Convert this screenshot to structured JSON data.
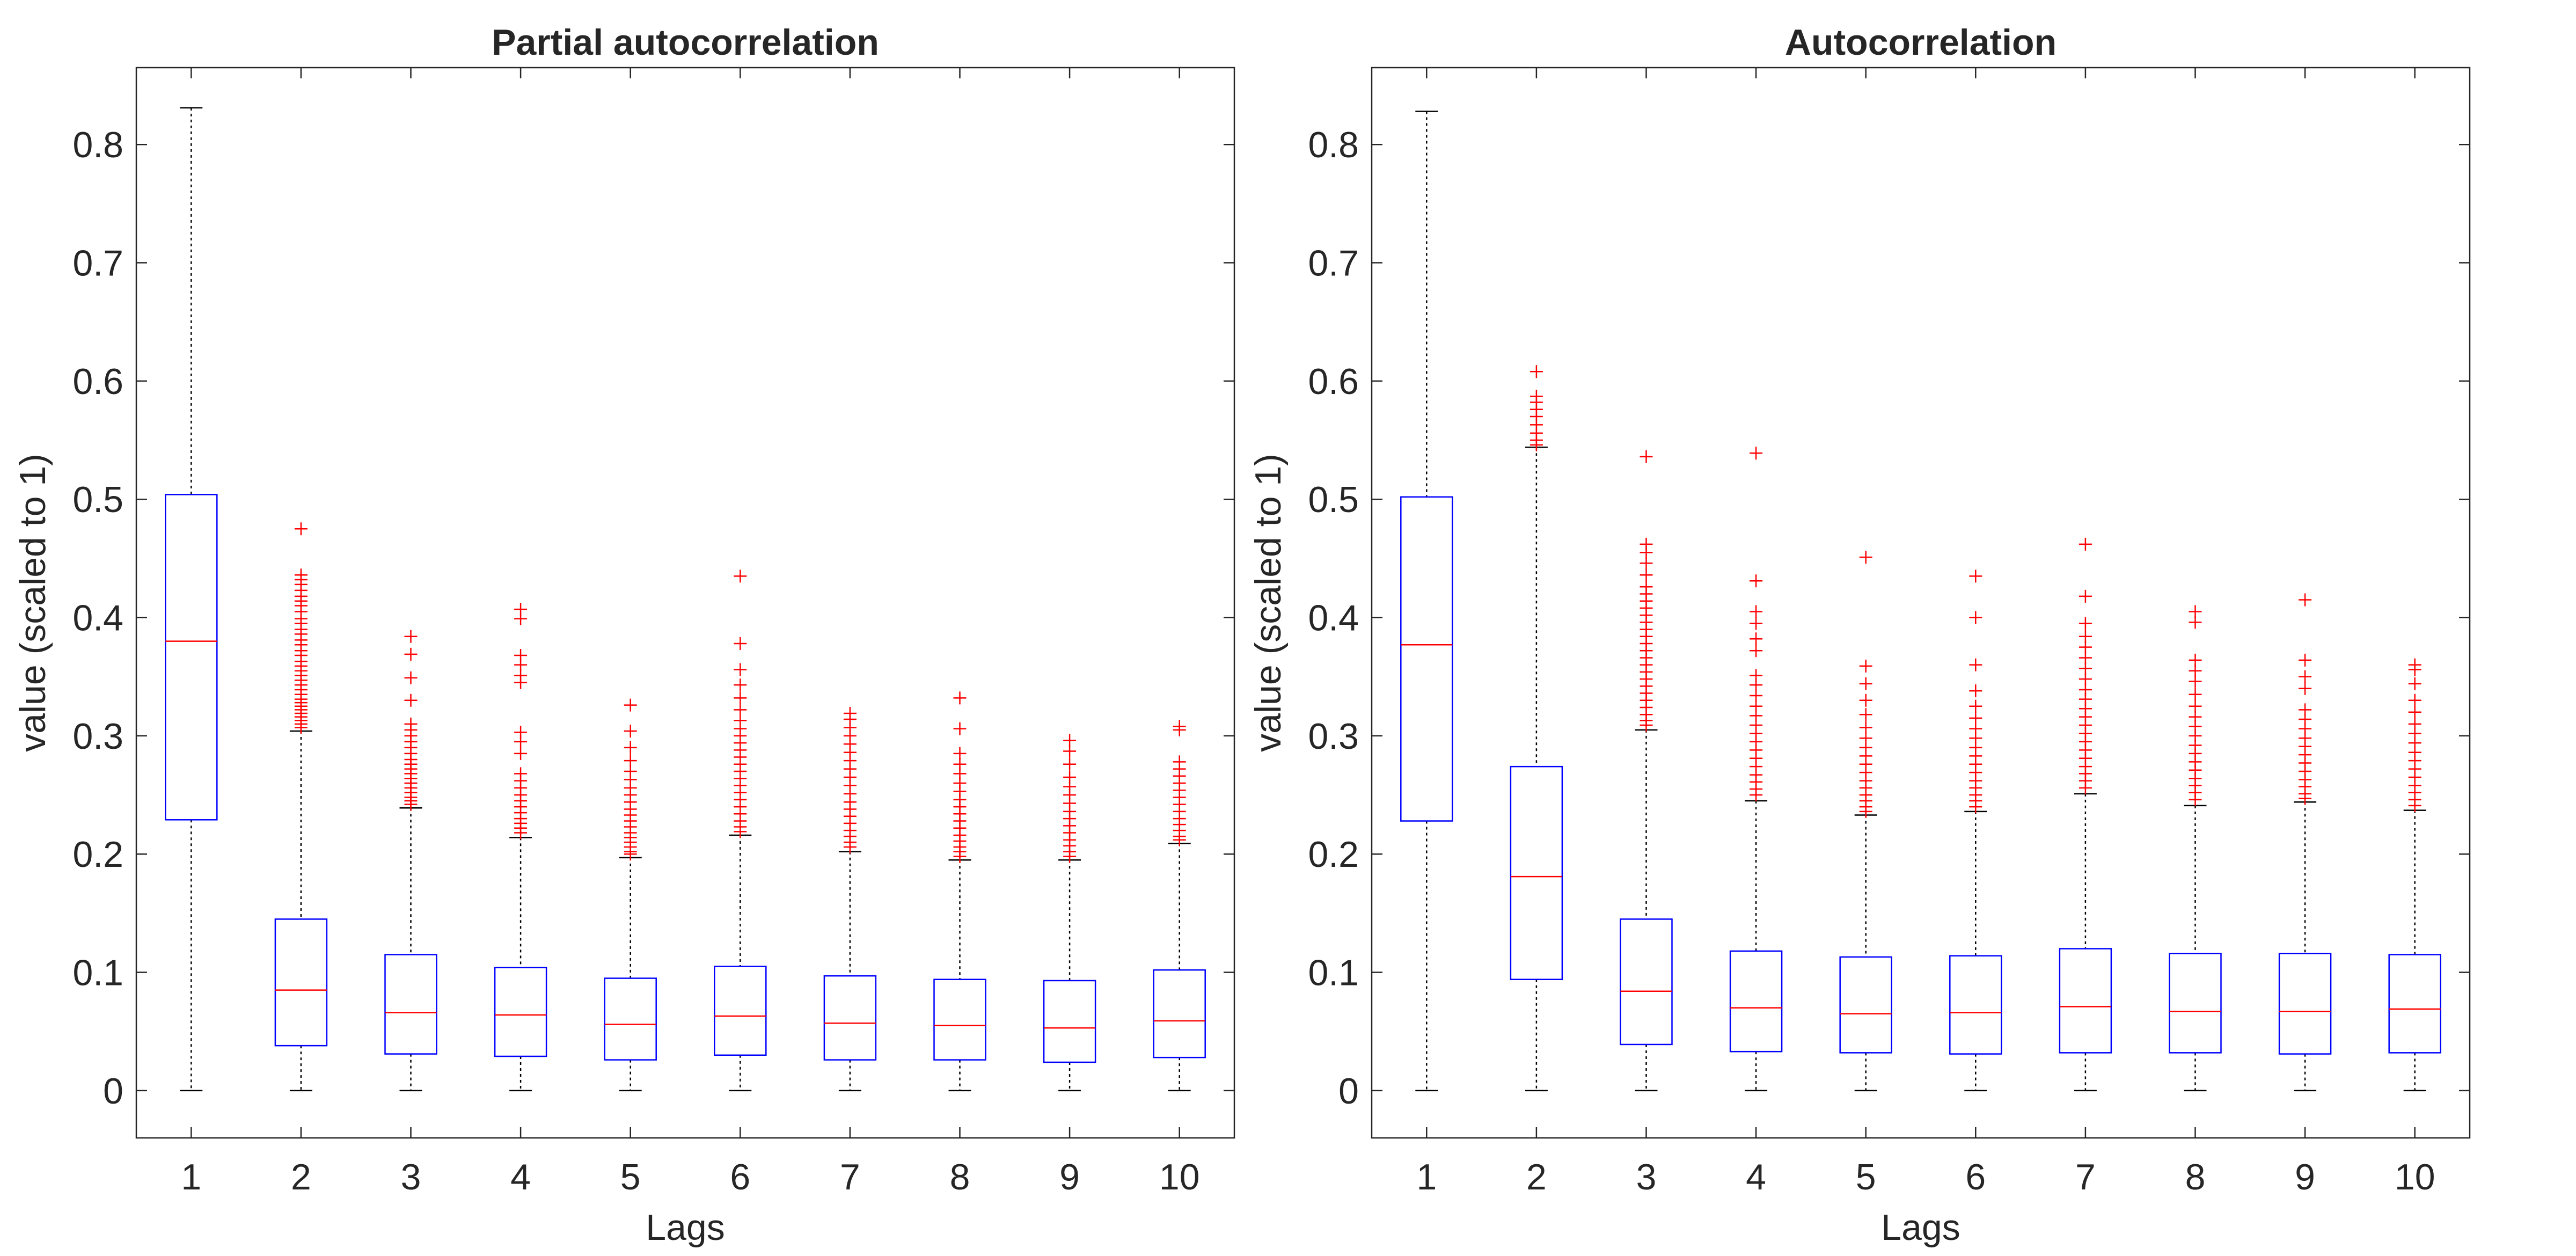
{
  "colors": {
    "box": "#0000ff",
    "median": "#ff0000",
    "outlier": "#ff0000",
    "whisker": "#000000",
    "axis": "#262626",
    "background": "#ffffff"
  },
  "chart_data": [
    {
      "type": "box",
      "title": "Partial autocorrelation",
      "xlabel": "Lags",
      "ylabel": "value (scaled to 1)",
      "ylim": [
        -0.04,
        0.865
      ],
      "yticks": [
        0,
        0.1,
        0.2,
        0.3,
        0.4,
        0.5,
        0.6,
        0.7,
        0.8
      ],
      "ytick_labels": [
        "0",
        "0.1",
        "0.2",
        "0.3",
        "0.4",
        "0.5",
        "0.6",
        "0.7",
        "0.8"
      ],
      "categories": [
        "1",
        "2",
        "3",
        "4",
        "5",
        "6",
        "7",
        "8",
        "9",
        "10"
      ],
      "grid": false,
      "boxes": [
        {
          "lag": "1",
          "whisker_low": 0,
          "q1": 0.229,
          "median": 0.38,
          "q3": 0.504,
          "whisker_high": 0.831,
          "outliers": []
        },
        {
          "lag": "2",
          "whisker_low": 0,
          "q1": 0.038,
          "median": 0.085,
          "q3": 0.145,
          "whisker_high": 0.304,
          "outliers": [
            0.475,
            0.436,
            0.432,
            0.428,
            0.423,
            0.418,
            0.414,
            0.41,
            0.405,
            0.399,
            0.395,
            0.39,
            0.386,
            0.381,
            0.377,
            0.372,
            0.368,
            0.363,
            0.359,
            0.355,
            0.351,
            0.347,
            0.343,
            0.339,
            0.335,
            0.331,
            0.328,
            0.325,
            0.322,
            0.319,
            0.316,
            0.313,
            0.31,
            0.307
          ]
        },
        {
          "lag": "3",
          "whisker_low": 0,
          "q1": 0.031,
          "median": 0.066,
          "q3": 0.115,
          "whisker_high": 0.239,
          "outliers": [
            0.384,
            0.369,
            0.349,
            0.33,
            0.31,
            0.305,
            0.3,
            0.295,
            0.29,
            0.285,
            0.28,
            0.276,
            0.272,
            0.268,
            0.264,
            0.26,
            0.256,
            0.252,
            0.248,
            0.245,
            0.242
          ]
        },
        {
          "lag": "4",
          "whisker_low": 0,
          "q1": 0.029,
          "median": 0.064,
          "q3": 0.104,
          "whisker_high": 0.214,
          "outliers": [
            0.407,
            0.399,
            0.368,
            0.36,
            0.351,
            0.345,
            0.303,
            0.295,
            0.285,
            0.268,
            0.262,
            0.256,
            0.25,
            0.245,
            0.24,
            0.235,
            0.23,
            0.226,
            0.222,
            0.218
          ]
        },
        {
          "lag": "5",
          "whisker_low": 0,
          "q1": 0.026,
          "median": 0.056,
          "q3": 0.095,
          "whisker_high": 0.197,
          "outliers": [
            0.326,
            0.304,
            0.29,
            0.279,
            0.27,
            0.263,
            0.256,
            0.25,
            0.244,
            0.238,
            0.233,
            0.228,
            0.223,
            0.218,
            0.214,
            0.21,
            0.206,
            0.202,
            0.2
          ]
        },
        {
          "lag": "6",
          "whisker_low": 0,
          "q1": 0.03,
          "median": 0.063,
          "q3": 0.105,
          "whisker_high": 0.216,
          "outliers": [
            0.435,
            0.378,
            0.356,
            0.343,
            0.332,
            0.322,
            0.313,
            0.306,
            0.3,
            0.294,
            0.288,
            0.282,
            0.276,
            0.27,
            0.264,
            0.258,
            0.252,
            0.246,
            0.24,
            0.234,
            0.228,
            0.223,
            0.219
          ]
        },
        {
          "lag": "7",
          "whisker_low": 0,
          "q1": 0.026,
          "median": 0.057,
          "q3": 0.097,
          "whisker_high": 0.202,
          "outliers": [
            0.319,
            0.314,
            0.307,
            0.3,
            0.293,
            0.286,
            0.279,
            0.272,
            0.265,
            0.258,
            0.251,
            0.244,
            0.238,
            0.232,
            0.226,
            0.22,
            0.215,
            0.21,
            0.206
          ]
        },
        {
          "lag": "8",
          "whisker_low": 0,
          "q1": 0.026,
          "median": 0.055,
          "q3": 0.094,
          "whisker_high": 0.195,
          "outliers": [
            0.332,
            0.306,
            0.285,
            0.276,
            0.268,
            0.26,
            0.253,
            0.246,
            0.24,
            0.234,
            0.228,
            0.222,
            0.216,
            0.211,
            0.206,
            0.202,
            0.198
          ]
        },
        {
          "lag": "9",
          "whisker_low": 0,
          "q1": 0.024,
          "median": 0.053,
          "q3": 0.093,
          "whisker_high": 0.195,
          "outliers": [
            0.296,
            0.287,
            0.276,
            0.265,
            0.257,
            0.25,
            0.243,
            0.236,
            0.23,
            0.224,
            0.218,
            0.212,
            0.207,
            0.202,
            0.198
          ]
        },
        {
          "lag": "10",
          "whisker_low": 0,
          "q1": 0.028,
          "median": 0.059,
          "q3": 0.102,
          "whisker_high": 0.209,
          "outliers": [
            0.308,
            0.305,
            0.278,
            0.272,
            0.266,
            0.26,
            0.254,
            0.248,
            0.242,
            0.236,
            0.23,
            0.225,
            0.22,
            0.215,
            0.212
          ]
        }
      ]
    },
    {
      "type": "box",
      "title": "Autocorrelation",
      "xlabel": "Lags",
      "ylabel": "value (scaled to 1)",
      "ylim": [
        -0.04,
        0.865
      ],
      "yticks": [
        0,
        0.1,
        0.2,
        0.3,
        0.4,
        0.5,
        0.6,
        0.7,
        0.8
      ],
      "ytick_labels": [
        "0",
        "0.1",
        "0.2",
        "0.3",
        "0.4",
        "0.5",
        "0.6",
        "0.7",
        "0.8"
      ],
      "categories": [
        "1",
        "2",
        "3",
        "4",
        "5",
        "6",
        "7",
        "8",
        "9",
        "10"
      ],
      "grid": false,
      "boxes": [
        {
          "lag": "1",
          "whisker_low": 0,
          "q1": 0.228,
          "median": 0.377,
          "q3": 0.502,
          "whisker_high": 0.828,
          "outliers": []
        },
        {
          "lag": "2",
          "whisker_low": 0,
          "q1": 0.094,
          "median": 0.181,
          "q3": 0.274,
          "whisker_high": 0.544,
          "outliers": [
            0.608,
            0.587,
            0.582,
            0.576,
            0.57,
            0.563,
            0.556,
            0.55,
            0.546
          ]
        },
        {
          "lag": "3",
          "whisker_low": 0,
          "q1": 0.039,
          "median": 0.084,
          "q3": 0.145,
          "whisker_high": 0.305,
          "outliers": [
            0.536,
            0.462,
            0.455,
            0.446,
            0.436,
            0.426,
            0.42,
            0.414,
            0.408,
            0.402,
            0.396,
            0.39,
            0.384,
            0.378,
            0.372,
            0.366,
            0.36,
            0.354,
            0.348,
            0.342,
            0.336,
            0.33,
            0.324,
            0.318,
            0.313,
            0.309
          ]
        },
        {
          "lag": "4",
          "whisker_low": 0,
          "q1": 0.033,
          "median": 0.07,
          "q3": 0.118,
          "whisker_high": 0.245,
          "outliers": [
            0.539,
            0.431,
            0.405,
            0.395,
            0.382,
            0.372,
            0.351,
            0.343,
            0.334,
            0.325,
            0.317,
            0.309,
            0.302,
            0.295,
            0.288,
            0.281,
            0.274,
            0.267,
            0.261,
            0.255,
            0.25
          ]
        },
        {
          "lag": "5",
          "whisker_low": 0,
          "q1": 0.032,
          "median": 0.065,
          "q3": 0.113,
          "whisker_high": 0.233,
          "outliers": [
            0.451,
            0.359,
            0.344,
            0.33,
            0.318,
            0.307,
            0.298,
            0.29,
            0.283,
            0.276,
            0.269,
            0.262,
            0.256,
            0.25,
            0.245,
            0.24,
            0.236
          ]
        },
        {
          "lag": "6",
          "whisker_low": 0,
          "q1": 0.031,
          "median": 0.066,
          "q3": 0.114,
          "whisker_high": 0.236,
          "outliers": [
            0.435,
            0.4,
            0.36,
            0.338,
            0.325,
            0.315,
            0.306,
            0.298,
            0.29,
            0.283,
            0.276,
            0.269,
            0.262,
            0.256,
            0.25,
            0.245,
            0.24
          ]
        },
        {
          "lag": "7",
          "whisker_low": 0,
          "q1": 0.032,
          "median": 0.071,
          "q3": 0.12,
          "whisker_high": 0.251,
          "outliers": [
            0.462,
            0.418,
            0.395,
            0.384,
            0.375,
            0.366,
            0.357,
            0.348,
            0.339,
            0.331,
            0.323,
            0.316,
            0.309,
            0.302,
            0.295,
            0.288,
            0.281,
            0.274,
            0.268,
            0.262,
            0.256
          ]
        },
        {
          "lag": "8",
          "whisker_low": 0,
          "q1": 0.032,
          "median": 0.067,
          "q3": 0.116,
          "whisker_high": 0.241,
          "outliers": [
            0.405,
            0.396,
            0.364,
            0.355,
            0.346,
            0.335,
            0.325,
            0.316,
            0.308,
            0.3,
            0.292,
            0.285,
            0.278,
            0.271,
            0.264,
            0.258,
            0.252,
            0.246
          ]
        },
        {
          "lag": "9",
          "whisker_low": 0,
          "q1": 0.031,
          "median": 0.067,
          "q3": 0.116,
          "whisker_high": 0.244,
          "outliers": [
            0.415,
            0.364,
            0.35,
            0.34,
            0.322,
            0.314,
            0.306,
            0.298,
            0.291,
            0.284,
            0.277,
            0.27,
            0.263,
            0.257,
            0.251,
            0.247
          ]
        },
        {
          "lag": "10",
          "whisker_low": 0,
          "q1": 0.032,
          "median": 0.069,
          "q3": 0.115,
          "whisker_high": 0.237,
          "outliers": [
            0.36,
            0.356,
            0.344,
            0.33,
            0.32,
            0.31,
            0.302,
            0.294,
            0.286,
            0.279,
            0.272,
            0.265,
            0.258,
            0.252,
            0.246,
            0.241
          ]
        }
      ]
    }
  ]
}
